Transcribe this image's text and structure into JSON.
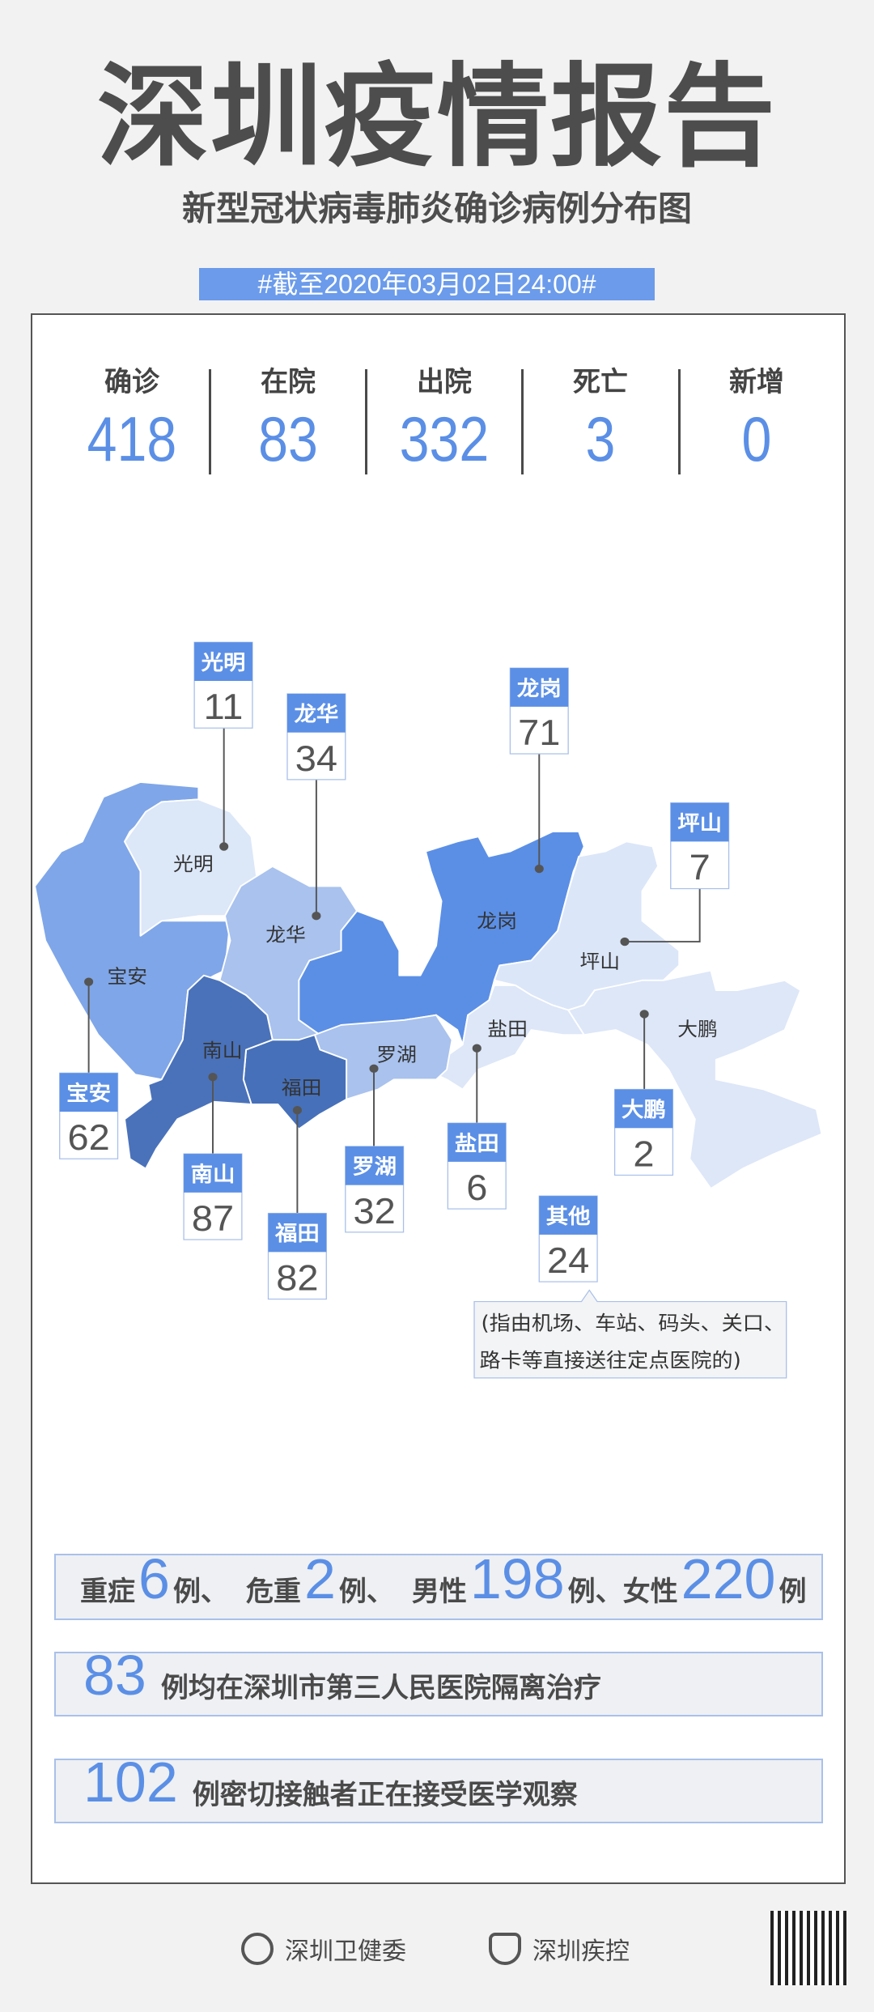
{
  "header": {
    "title": "深圳疫情报告",
    "subtitle": "新型冠状病毒肺炎确诊病例分布图",
    "date_badge": "#截至2020年03月02日24:00#"
  },
  "accent_color": "#5b8fe6",
  "stats": [
    {
      "label": "确诊",
      "value": "418"
    },
    {
      "label": "在院",
      "value": "83"
    },
    {
      "label": "出院",
      "value": "332"
    },
    {
      "label": "死亡",
      "value": "3"
    },
    {
      "label": "新增",
      "value": "0"
    }
  ],
  "map": {
    "districts": [
      {
        "name": "光明",
        "count": "11"
      },
      {
        "name": "龙华",
        "count": "34"
      },
      {
        "name": "龙岗",
        "count": "71"
      },
      {
        "name": "坪山",
        "count": "7"
      },
      {
        "name": "宝安",
        "count": "62"
      },
      {
        "name": "南山",
        "count": "87"
      },
      {
        "name": "福田",
        "count": "82"
      },
      {
        "name": "罗湖",
        "count": "32"
      },
      {
        "name": "盐田",
        "count": "6"
      },
      {
        "name": "大鹏",
        "count": "2"
      },
      {
        "name": "其他",
        "count": "24"
      }
    ],
    "other_note_line1": "(指由机场、车站、码头、关口、",
    "other_note_line2": "路卡等直接送往定点医院的)"
  },
  "summary": {
    "row1": {
      "severe_label": "重症",
      "severe": "6",
      "unit1": "例、",
      "critical_label": "危重",
      "critical": "2",
      "unit2": "例、",
      "male_label": "男性",
      "male": "198",
      "unit3": "例、",
      "female_label": "女性",
      "female": "220",
      "unit4": "例"
    },
    "row2": {
      "value": "83",
      "text": "例均在深圳市第三人民医院隔离治疗"
    },
    "row3": {
      "value": "102",
      "text": "例密切接触者正在接受医学观察"
    }
  },
  "footer": {
    "org1": "深圳卫健委",
    "org2": "深圳疾控"
  }
}
